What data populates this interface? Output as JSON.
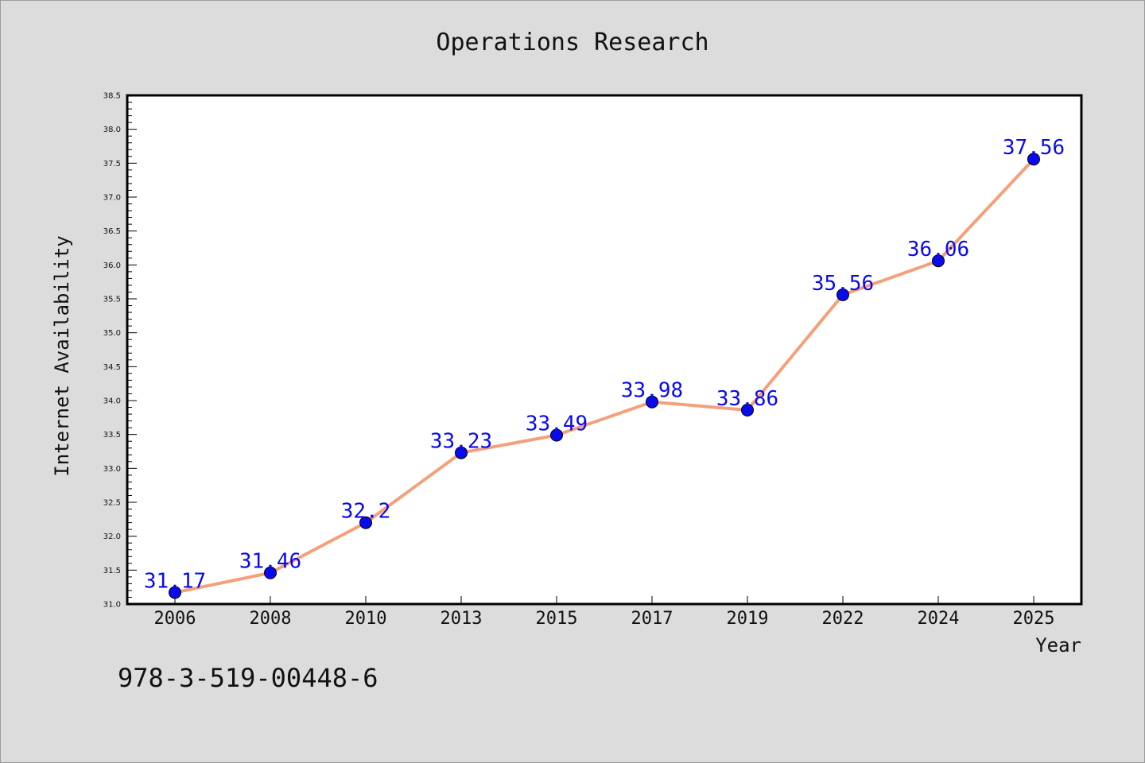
{
  "chart_data": {
    "type": "line",
    "title": "Operations Research",
    "xlabel": "Year",
    "ylabel": "Internet Availability",
    "categories": [
      "2006",
      "2008",
      "2010",
      "2013",
      "2015",
      "2017",
      "2019",
      "2022",
      "2024",
      "2025"
    ],
    "series": [
      {
        "values": [
          31.17,
          31.46,
          32.2,
          33.23,
          33.49,
          33.98,
          33.86,
          35.56,
          36.06,
          37.56
        ],
        "labels": [
          "31.17",
          "31.46",
          "32.2",
          "33.23",
          "33.49",
          "33.98",
          "33.86",
          "35.56",
          "36.06",
          "37.56"
        ],
        "line_color": "#f4a07a",
        "marker_color": "#0a0aee",
        "label_color": "#0a0aee"
      }
    ],
    "ylim": [
      31.0,
      38.5
    ],
    "yticks": [
      "31.0",
      "31.5",
      "32.0",
      "32.5",
      "33.0",
      "33.5",
      "34.0",
      "34.5",
      "35.0",
      "35.5",
      "36.0",
      "36.5",
      "37.0",
      "37.5",
      "38.0",
      "38.5"
    ],
    "grid": false,
    "legend": "none"
  },
  "footer": {
    "isbn": "978-3-519-00448-6"
  }
}
